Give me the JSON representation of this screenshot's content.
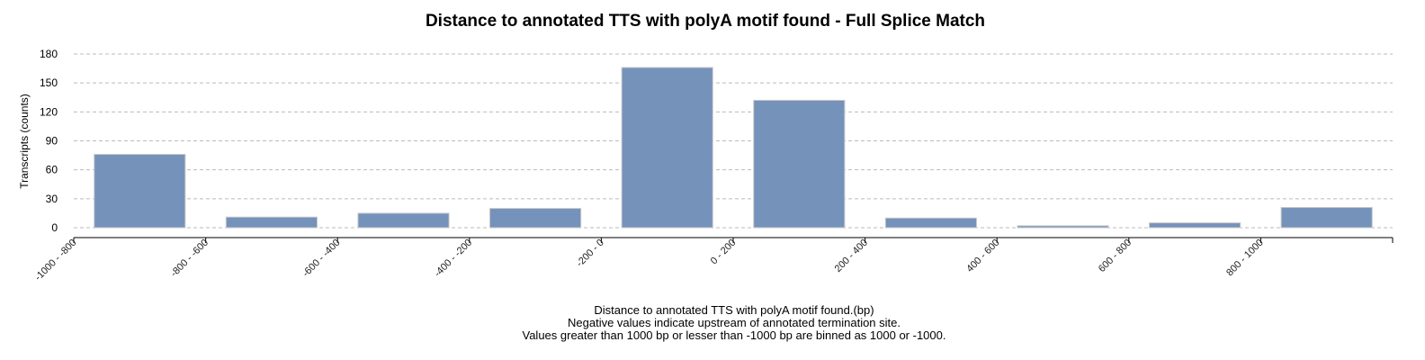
{
  "chart_data": {
    "type": "bar",
    "title": "Distance to annotated TTS with polyA motif found - Full Splice Match",
    "ylabel": "Transcripts (counts)",
    "xlabel_lines": [
      "Distance to annotated TTS with polyA motif found.(bp)",
      "Negative values indicate upstream of annotated termination site.",
      "Values greater than 1000 bp or lesser than -1000 bp are binned as 1000 or -1000."
    ],
    "categories": [
      "-1000 - -800",
      "-800 - -600",
      "-600 - -400",
      "-400 - -200",
      "-200 - 0",
      "0 - 200",
      "200 - 400",
      "400 - 600",
      "600 - 800",
      "800 - 1000"
    ],
    "values": [
      76,
      11,
      15,
      20,
      166,
      132,
      10,
      2,
      5,
      21
    ],
    "ylim": [
      0,
      180
    ],
    "yticks": [
      0,
      30,
      60,
      90,
      120,
      150,
      180
    ],
    "grid": true,
    "colors": {
      "bar": "#7592bb",
      "bar_edge": "#c9c9c9",
      "grid": "#bbbbbb"
    }
  }
}
